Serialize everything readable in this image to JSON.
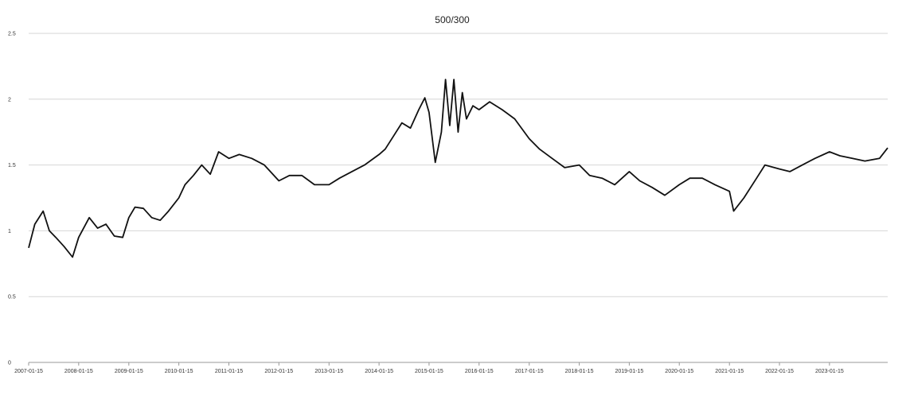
{
  "chart_data": {
    "type": "line",
    "title": "500/300",
    "xlabel": "",
    "ylabel": "",
    "ylim": [
      0,
      2.5
    ],
    "yticks": [
      "0",
      "0.5",
      "1",
      "1.5",
      "2",
      "2.5"
    ],
    "ytick_values": [
      0,
      0.5,
      1,
      1.5,
      2,
      2.5
    ],
    "xticks": [
      "2007-01-15",
      "2008-01-15",
      "2009-01-15",
      "2010-01-15",
      "2011-01-15",
      "2012-01-15",
      "2013-01-15",
      "2014-01-15",
      "2015-01-15",
      "2016-01-15",
      "2017-01-15",
      "2018-01-15",
      "2019-01-15",
      "2020-01-15",
      "2021-01-15",
      "2022-01-15",
      "2023-01-15"
    ],
    "xlim": [
      "2007-01-15",
      "2024-03-15"
    ],
    "grid": true,
    "legend": "none",
    "line_color": "#111111",
    "series": [
      {
        "x": [
          "2007-01-15",
          "2007-03-01",
          "2007-05-01",
          "2007-06-15",
          "2007-08-01",
          "2007-10-01",
          "2007-12-01",
          "2008-01-15",
          "2008-04-01",
          "2008-06-01",
          "2008-08-01",
          "2008-10-01",
          "2008-12-01",
          "2009-01-15",
          "2009-03-01",
          "2009-05-01",
          "2009-07-01",
          "2009-09-01",
          "2009-11-01",
          "2010-01-15",
          "2010-03-01",
          "2010-05-01",
          "2010-07-01",
          "2010-09-01",
          "2010-11-01",
          "2011-01-15",
          "2011-04-01",
          "2011-07-01",
          "2011-10-01",
          "2012-01-15",
          "2012-04-01",
          "2012-07-01",
          "2012-10-01",
          "2013-01-15",
          "2013-04-01",
          "2013-07-01",
          "2013-10-01",
          "2014-01-15",
          "2014-03-01",
          "2014-05-01",
          "2014-07-01",
          "2014-09-01",
          "2014-11-01",
          "2014-12-15",
          "2015-01-15",
          "2015-03-01",
          "2015-04-15",
          "2015-05-15",
          "2015-06-15",
          "2015-07-15",
          "2015-08-15",
          "2015-09-15",
          "2015-10-15",
          "2015-12-01",
          "2016-01-15",
          "2016-04-01",
          "2016-07-01",
          "2016-10-01",
          "2017-01-15",
          "2017-04-01",
          "2017-07-01",
          "2017-10-01",
          "2018-01-15",
          "2018-04-01",
          "2018-07-01",
          "2018-10-01",
          "2019-01-15",
          "2019-04-01",
          "2019-07-01",
          "2019-10-01",
          "2020-01-15",
          "2020-04-01",
          "2020-07-01",
          "2020-10-01",
          "2021-01-15",
          "2021-02-15",
          "2021-05-01",
          "2021-08-01",
          "2021-10-01",
          "2022-01-15",
          "2022-04-01",
          "2022-07-01",
          "2022-10-01",
          "2023-01-15",
          "2023-04-01",
          "2023-07-01",
          "2023-10-01",
          "2024-01-15",
          "2024-03-15"
        ],
        "y": [
          0.87,
          1.05,
          1.15,
          1.0,
          0.95,
          0.88,
          0.8,
          0.95,
          1.1,
          1.02,
          1.05,
          0.96,
          0.95,
          1.1,
          1.18,
          1.17,
          1.1,
          1.08,
          1.15,
          1.25,
          1.35,
          1.42,
          1.5,
          1.43,
          1.6,
          1.55,
          1.58,
          1.55,
          1.5,
          1.38,
          1.42,
          1.42,
          1.35,
          1.35,
          1.4,
          1.45,
          1.5,
          1.58,
          1.62,
          1.72,
          1.82,
          1.78,
          1.92,
          2.01,
          1.9,
          1.52,
          1.75,
          2.15,
          1.8,
          2.15,
          1.75,
          2.05,
          1.85,
          1.95,
          1.92,
          1.98,
          1.92,
          1.85,
          1.7,
          1.62,
          1.55,
          1.48,
          1.5,
          1.42,
          1.4,
          1.35,
          1.45,
          1.38,
          1.33,
          1.27,
          1.35,
          1.4,
          1.4,
          1.35,
          1.3,
          1.15,
          1.25,
          1.4,
          1.5,
          1.47,
          1.45,
          1.5,
          1.55,
          1.6,
          1.57,
          1.55,
          1.53,
          1.55,
          1.63
        ]
      }
    ]
  }
}
